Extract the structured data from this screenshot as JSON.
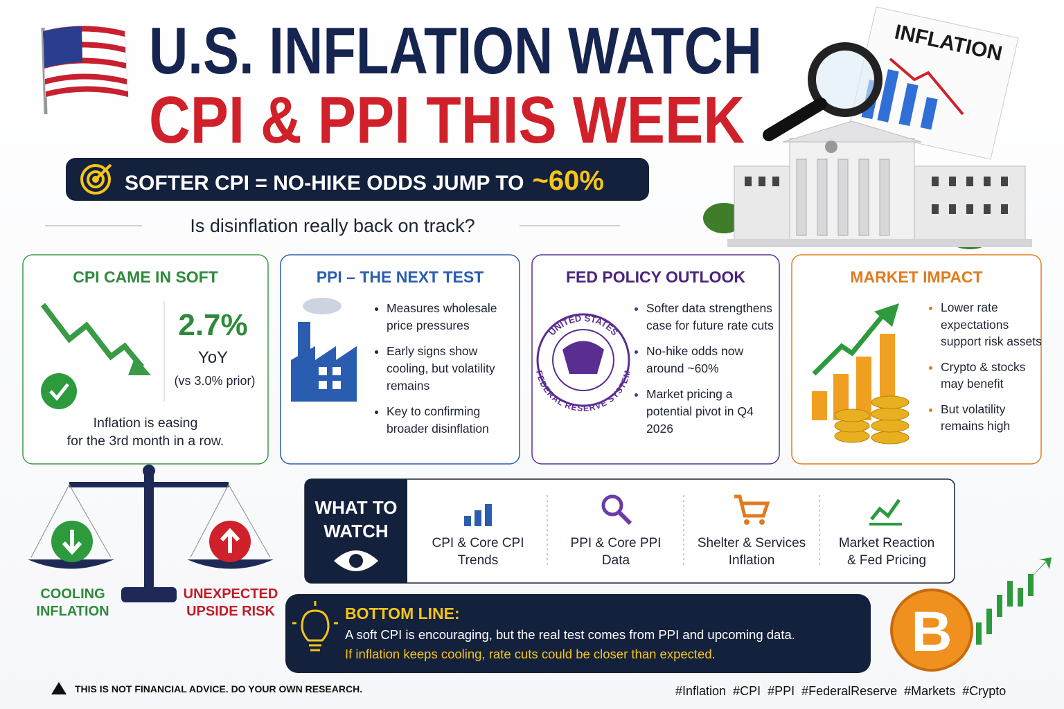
{
  "header": {
    "title_line1": "U.S. INFLATION WATCH",
    "title_line2": "CPI & PPI THIS WEEK",
    "banner": {
      "text": "SOFTER CPI = NO-HIKE ODDS JUMP TO",
      "highlight": "~60%"
    },
    "subtitle": "Is disinflation really back on track?",
    "document_label": "INFLATION"
  },
  "cards": [
    {
      "title": "CPI CAME IN SOFT",
      "stat": "2.7%",
      "stat_unit": "YoY",
      "stat_note": "(vs 3.0% prior)",
      "caption": [
        "Inflation is easing",
        "for the 3rd month in a row."
      ]
    },
    {
      "title": "PPI – THE NEXT TEST",
      "bullets": [
        "Measures wholesale price pressures",
        "Early signs show cooling, but volatility remains",
        "Key to confirming broader disinflation"
      ]
    },
    {
      "title": "FED POLICY OUTLOOK",
      "seal_top": "UNITED STATES",
      "seal_bottom": "FEDERAL RESERVE SYSTEM",
      "bullets": [
        "Softer data strengthens case for future rate cuts",
        "No-hike odds now around ~60%",
        "Market pricing a potential pivot in Q4 2026"
      ]
    },
    {
      "title": "MARKET IMPACT",
      "bullets": [
        "Lower rate expectations support risk assets",
        "Crypto & stocks may benefit",
        "But volatility remains high"
      ]
    }
  ],
  "scale": {
    "left_label": [
      "COOLING",
      "INFLATION"
    ],
    "right_label": [
      "UNEXPECTED",
      "UPSIDE RISK"
    ]
  },
  "what_to_watch": {
    "title": [
      "WHAT TO",
      "WATCH"
    ],
    "items": [
      [
        "CPI & Core CPI",
        "Trends"
      ],
      [
        "PPI & Core PPI",
        "Data"
      ],
      [
        "Shelter & Services",
        "Inflation"
      ],
      [
        "Market Reaction",
        "& Fed Pricing"
      ]
    ]
  },
  "bottom_line": {
    "title": "BOTTOM LINE:",
    "text": "A soft CPI is encouraging, but the real test comes from PPI and upcoming data.",
    "highlight": "If inflation keeps cooling, rate cuts could be closer than expected."
  },
  "footer": {
    "disclaimer": "THIS IS NOT FINANCIAL ADVICE. DO YOUR OWN RESEARCH.",
    "hashtags": "#Inflation  #CPI  #PPI  #FederalReserve  #Markets  #Crypto"
  }
}
